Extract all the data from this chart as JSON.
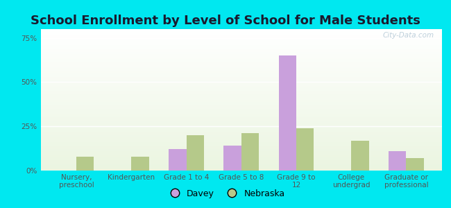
{
  "title": "School Enrollment by Level of School for Male Students",
  "categories": [
    "Nursery,\npreschool",
    "Kindergarten",
    "Grade 1 to 4",
    "Grade 5 to 8",
    "Grade 9 to\n12",
    "College\nundergrad",
    "Graduate or\nprofessional"
  ],
  "davey": [
    0,
    0,
    12,
    14,
    65,
    0,
    11
  ],
  "nebraska": [
    8,
    8,
    20,
    21,
    24,
    17,
    7
  ],
  "davey_color": "#c9a0dc",
  "nebraska_color": "#b5c98a",
  "background_outer": "#00e8f0",
  "yticks": [
    0,
    25,
    50,
    75
  ],
  "ylim": [
    0,
    80
  ],
  "bar_width": 0.32,
  "title_fontsize": 13,
  "tick_fontsize": 7.5,
  "legend_fontsize": 9,
  "watermark": "City-Data.com"
}
